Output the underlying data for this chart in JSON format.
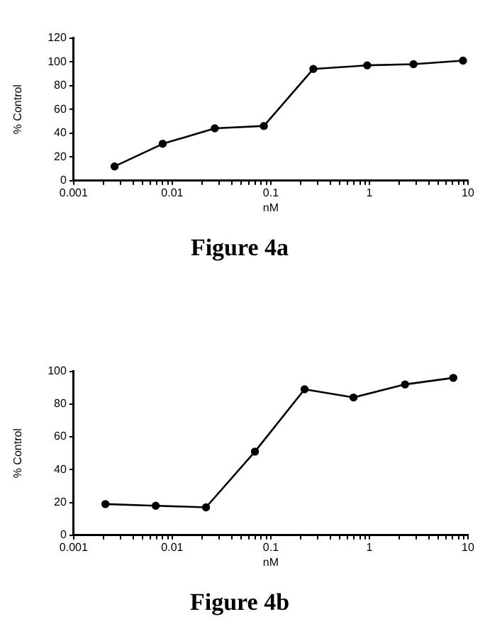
{
  "chart_data": [
    {
      "type": "line",
      "title": "Figure 4a",
      "xlabel": "nM",
      "ylabel": "% Control",
      "log": "x",
      "marker": "circle",
      "line_style": "solid",
      "grid": false,
      "legend": false,
      "x": [
        0.0026,
        0.008,
        0.027,
        0.085,
        0.27,
        0.95,
        2.8,
        8.9
      ],
      "series": [
        {
          "color": "#000000",
          "values": [
            12,
            31,
            44,
            46,
            94,
            97,
            98,
            101
          ]
        }
      ],
      "xlim": [
        0.001,
        10
      ],
      "xticks": [
        0.001,
        {
          "value": 0.002,
          "label": null
        },
        {
          "value": 0.003,
          "label": null
        },
        {
          "value": 0.004,
          "label": null
        },
        {
          "value": 0.005,
          "label": null
        },
        {
          "value": 0.006,
          "label": null
        },
        {
          "value": 0.007,
          "label": null
        },
        {
          "value": 0.008,
          "label": null
        },
        {
          "value": 0.009,
          "label": null
        },
        0.01,
        {
          "value": 0.02,
          "label": null
        },
        {
          "value": 0.03,
          "label": null
        },
        {
          "value": 0.04,
          "label": null
        },
        {
          "value": 0.05,
          "label": null
        },
        {
          "value": 0.06,
          "label": null
        },
        {
          "value": 0.07,
          "label": null
        },
        {
          "value": 0.08,
          "label": null
        },
        {
          "value": 0.09,
          "label": null
        },
        0.1,
        {
          "value": 0.2,
          "label": null
        },
        {
          "value": 0.3,
          "label": null
        },
        {
          "value": 0.4,
          "label": null
        },
        {
          "value": 0.5,
          "label": null
        },
        {
          "value": 0.6,
          "label": null
        },
        {
          "value": 0.7,
          "label": null
        },
        {
          "value": 0.8,
          "label": null
        },
        {
          "value": 0.9,
          "label": null
        },
        1,
        {
          "value": 2,
          "label": null
        },
        {
          "value": 3,
          "label": null
        },
        {
          "value": 4,
          "label": null
        },
        {
          "value": 5,
          "label": null
        },
        {
          "value": 6,
          "label": null
        },
        {
          "value": 7,
          "label": null
        },
        {
          "value": 8,
          "label": null
        },
        {
          "value": 9,
          "label": null
        },
        10
      ],
      "ylim": [
        0,
        120
      ],
      "yticks": [
        0,
        20,
        40,
        60,
        80,
        100,
        120
      ]
    },
    {
      "type": "line",
      "title": "Figure 4b",
      "xlabel": "nM",
      "ylabel": "% Control",
      "log": "x",
      "marker": "circle",
      "line_style": "solid",
      "grid": false,
      "legend": false,
      "x": [
        0.0021,
        0.0068,
        0.022,
        0.069,
        0.22,
        0.69,
        2.3,
        7.1
      ],
      "series": [
        {
          "color": "#000000",
          "values": [
            19,
            18,
            17,
            51,
            89,
            84,
            92,
            96
          ]
        }
      ],
      "xlim": [
        0.001,
        10
      ],
      "xticks": [
        0.001,
        {
          "value": 0.002,
          "label": null
        },
        {
          "value": 0.003,
          "label": null
        },
        {
          "value": 0.004,
          "label": null
        },
        {
          "value": 0.005,
          "label": null
        },
        {
          "value": 0.006,
          "label": null
        },
        {
          "value": 0.007,
          "label": null
        },
        {
          "value": 0.008,
          "label": null
        },
        {
          "value": 0.009,
          "label": null
        },
        0.01,
        {
          "value": 0.02,
          "label": null
        },
        {
          "value": 0.03,
          "label": null
        },
        {
          "value": 0.04,
          "label": null
        },
        {
          "value": 0.05,
          "label": null
        },
        {
          "value": 0.06,
          "label": null
        },
        {
          "value": 0.07,
          "label": null
        },
        {
          "value": 0.08,
          "label": null
        },
        {
          "value": 0.09,
          "label": null
        },
        0.1,
        {
          "value": 0.2,
          "label": null
        },
        {
          "value": 0.3,
          "label": null
        },
        {
          "value": 0.4,
          "label": null
        },
        {
          "value": 0.5,
          "label": null
        },
        {
          "value": 0.6,
          "label": null
        },
        {
          "value": 0.7,
          "label": null
        },
        {
          "value": 0.8,
          "label": null
        },
        {
          "value": 0.9,
          "label": null
        },
        1,
        {
          "value": 2,
          "label": null
        },
        {
          "value": 3,
          "label": null
        },
        {
          "value": 4,
          "label": null
        },
        {
          "value": 5,
          "label": null
        },
        {
          "value": 6,
          "label": null
        },
        {
          "value": 7,
          "label": null
        },
        {
          "value": 8,
          "label": null
        },
        {
          "value": 9,
          "label": null
        },
        10
      ],
      "ylim": [
        0,
        100
      ],
      "yticks": [
        0,
        20,
        40,
        60,
        80,
        100
      ]
    }
  ]
}
